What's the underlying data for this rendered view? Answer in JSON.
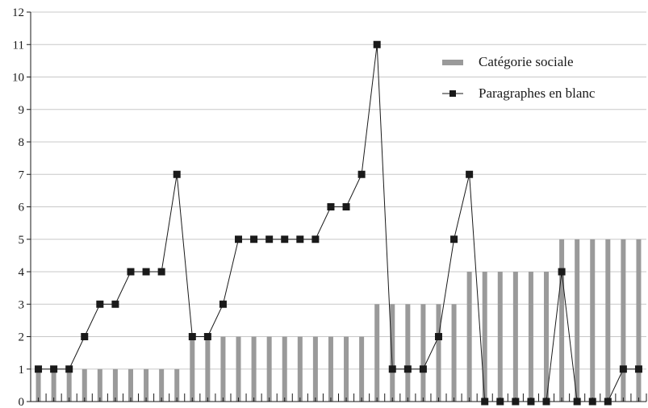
{
  "chart_data": {
    "type": "bar",
    "title": "",
    "xlabel": "",
    "ylabel": "",
    "ylim": [
      0,
      12
    ],
    "y_ticks": [
      "0",
      "1",
      "2",
      "3",
      "4",
      "5",
      "6",
      "7",
      "8",
      "9",
      "10",
      "11",
      "12"
    ],
    "grid": true,
    "legend_position": "top-right",
    "x_count": 40,
    "series": [
      {
        "name": "Catégorie sociale",
        "type": "bar",
        "color": "#9a9a9a",
        "values": [
          1,
          1,
          1,
          1,
          1,
          1,
          1,
          1,
          1,
          1,
          2,
          2,
          2,
          2,
          2,
          2,
          2,
          2,
          2,
          2,
          2,
          2,
          3,
          3,
          3,
          3,
          3,
          3,
          4,
          4,
          4,
          4,
          4,
          4,
          5,
          5,
          5,
          5,
          5,
          5
        ]
      },
      {
        "name": "Paragraphes en blanc",
        "type": "line",
        "color": "#1a1a1a",
        "marker": "square",
        "values": [
          1,
          1,
          1,
          2,
          3,
          3,
          4,
          4,
          4,
          7,
          2,
          2,
          3,
          5,
          5,
          5,
          5,
          5,
          5,
          6,
          6,
          7,
          11,
          1,
          1,
          1,
          2,
          5,
          7,
          0,
          0,
          0,
          0,
          0,
          4,
          0,
          0,
          0,
          1,
          1
        ]
      }
    ]
  }
}
